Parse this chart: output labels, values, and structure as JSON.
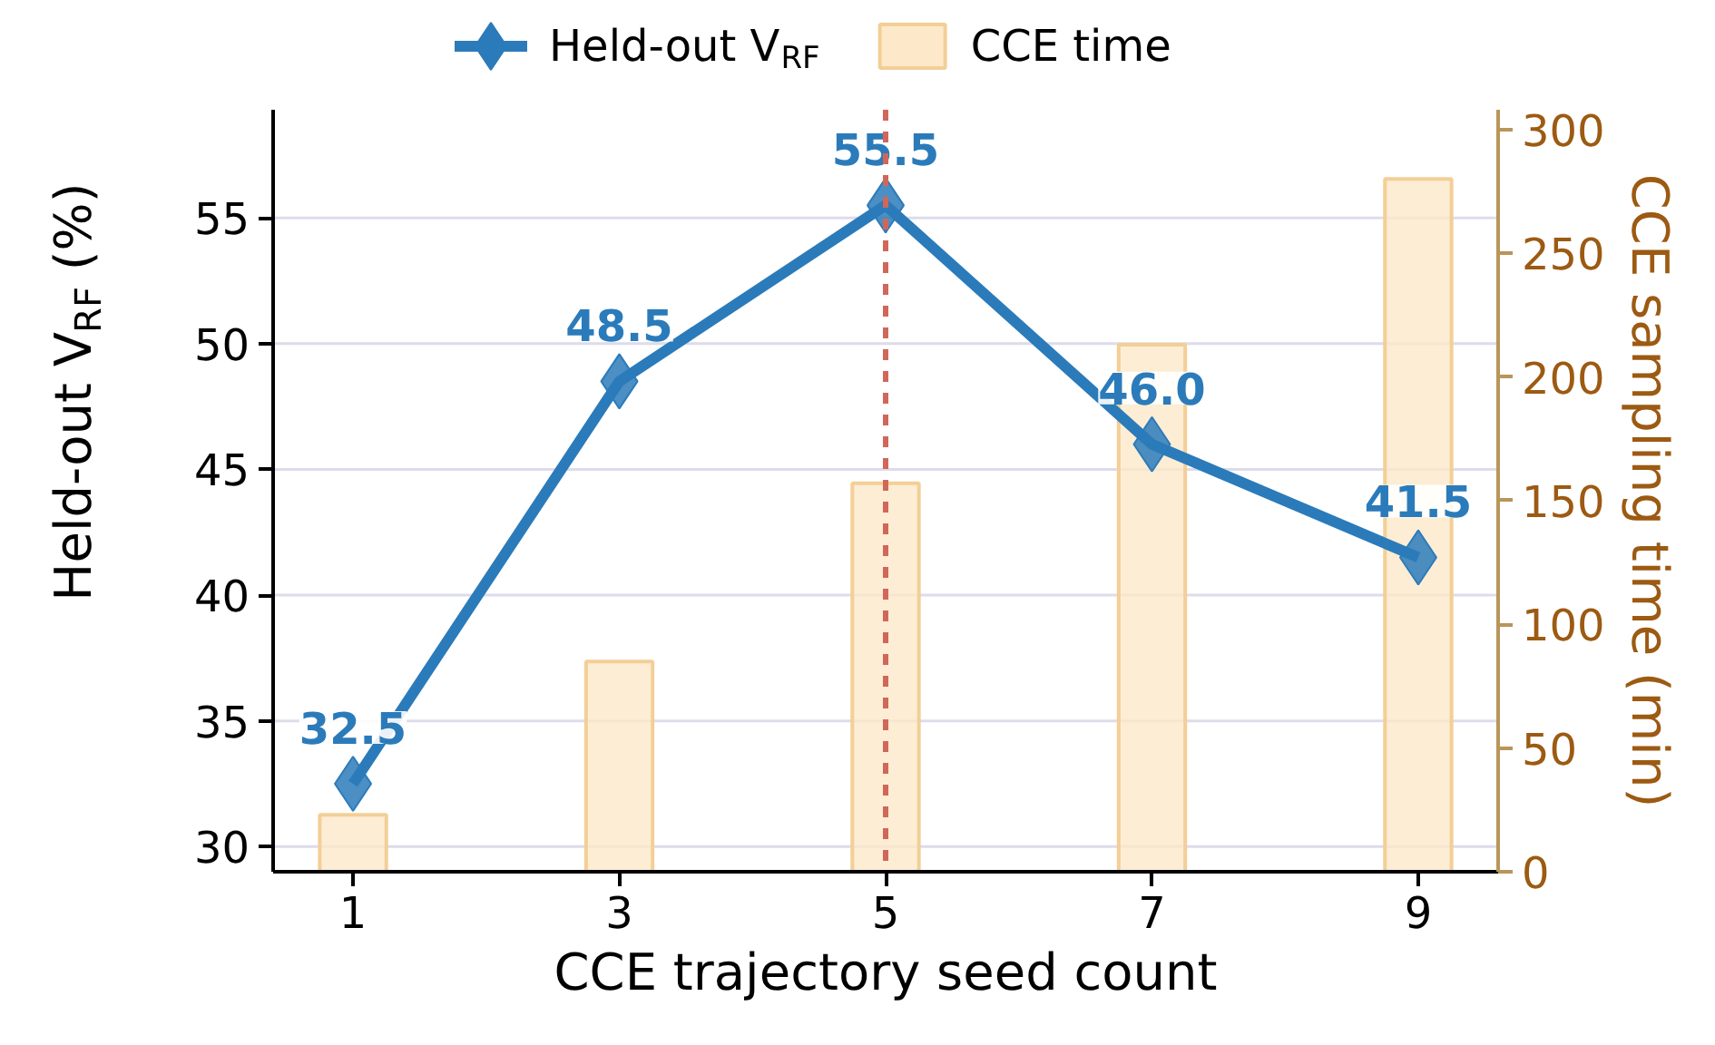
{
  "chart_data": {
    "type": "line",
    "xlabel": "CCE trajectory seed count",
    "ylabel": "Held-out V$_{RF}$ (%)",
    "y2label": "CCE sampling time (min)",
    "x": [
      1,
      3,
      5,
      7,
      9
    ],
    "series": [
      {
        "name": "Held-out V$_{RF}$",
        "color": "#2b7bba",
        "values": [
          32.5,
          48.5,
          55.5,
          46.0,
          41.5
        ],
        "marker": "diamond",
        "value_labels": [
          "32.5",
          "48.5",
          "55.5",
          "46.0",
          "41.5"
        ]
      },
      {
        "name": "CCE time",
        "type": "bar",
        "axis": "y2",
        "color": "#fde9c9",
        "values": [
          23,
          85,
          157,
          213,
          280
        ]
      }
    ],
    "xlim": [
      0.4,
      9.6
    ],
    "xticks": [
      1,
      3,
      5,
      7,
      9
    ],
    "ylim": [
      29,
      59.3
    ],
    "yticks": [
      30,
      35,
      40,
      45,
      50,
      55
    ],
    "y2lim": [
      0,
      308
    ],
    "y2ticks": [
      0,
      50,
      100,
      150,
      200,
      250,
      300
    ],
    "ref_lines": [
      {
        "axis": "x",
        "value": 5,
        "color": "#d0675a",
        "line_style": "dashed"
      }
    ],
    "grid": "y",
    "legend": "top",
    "line_style": "solid"
  }
}
